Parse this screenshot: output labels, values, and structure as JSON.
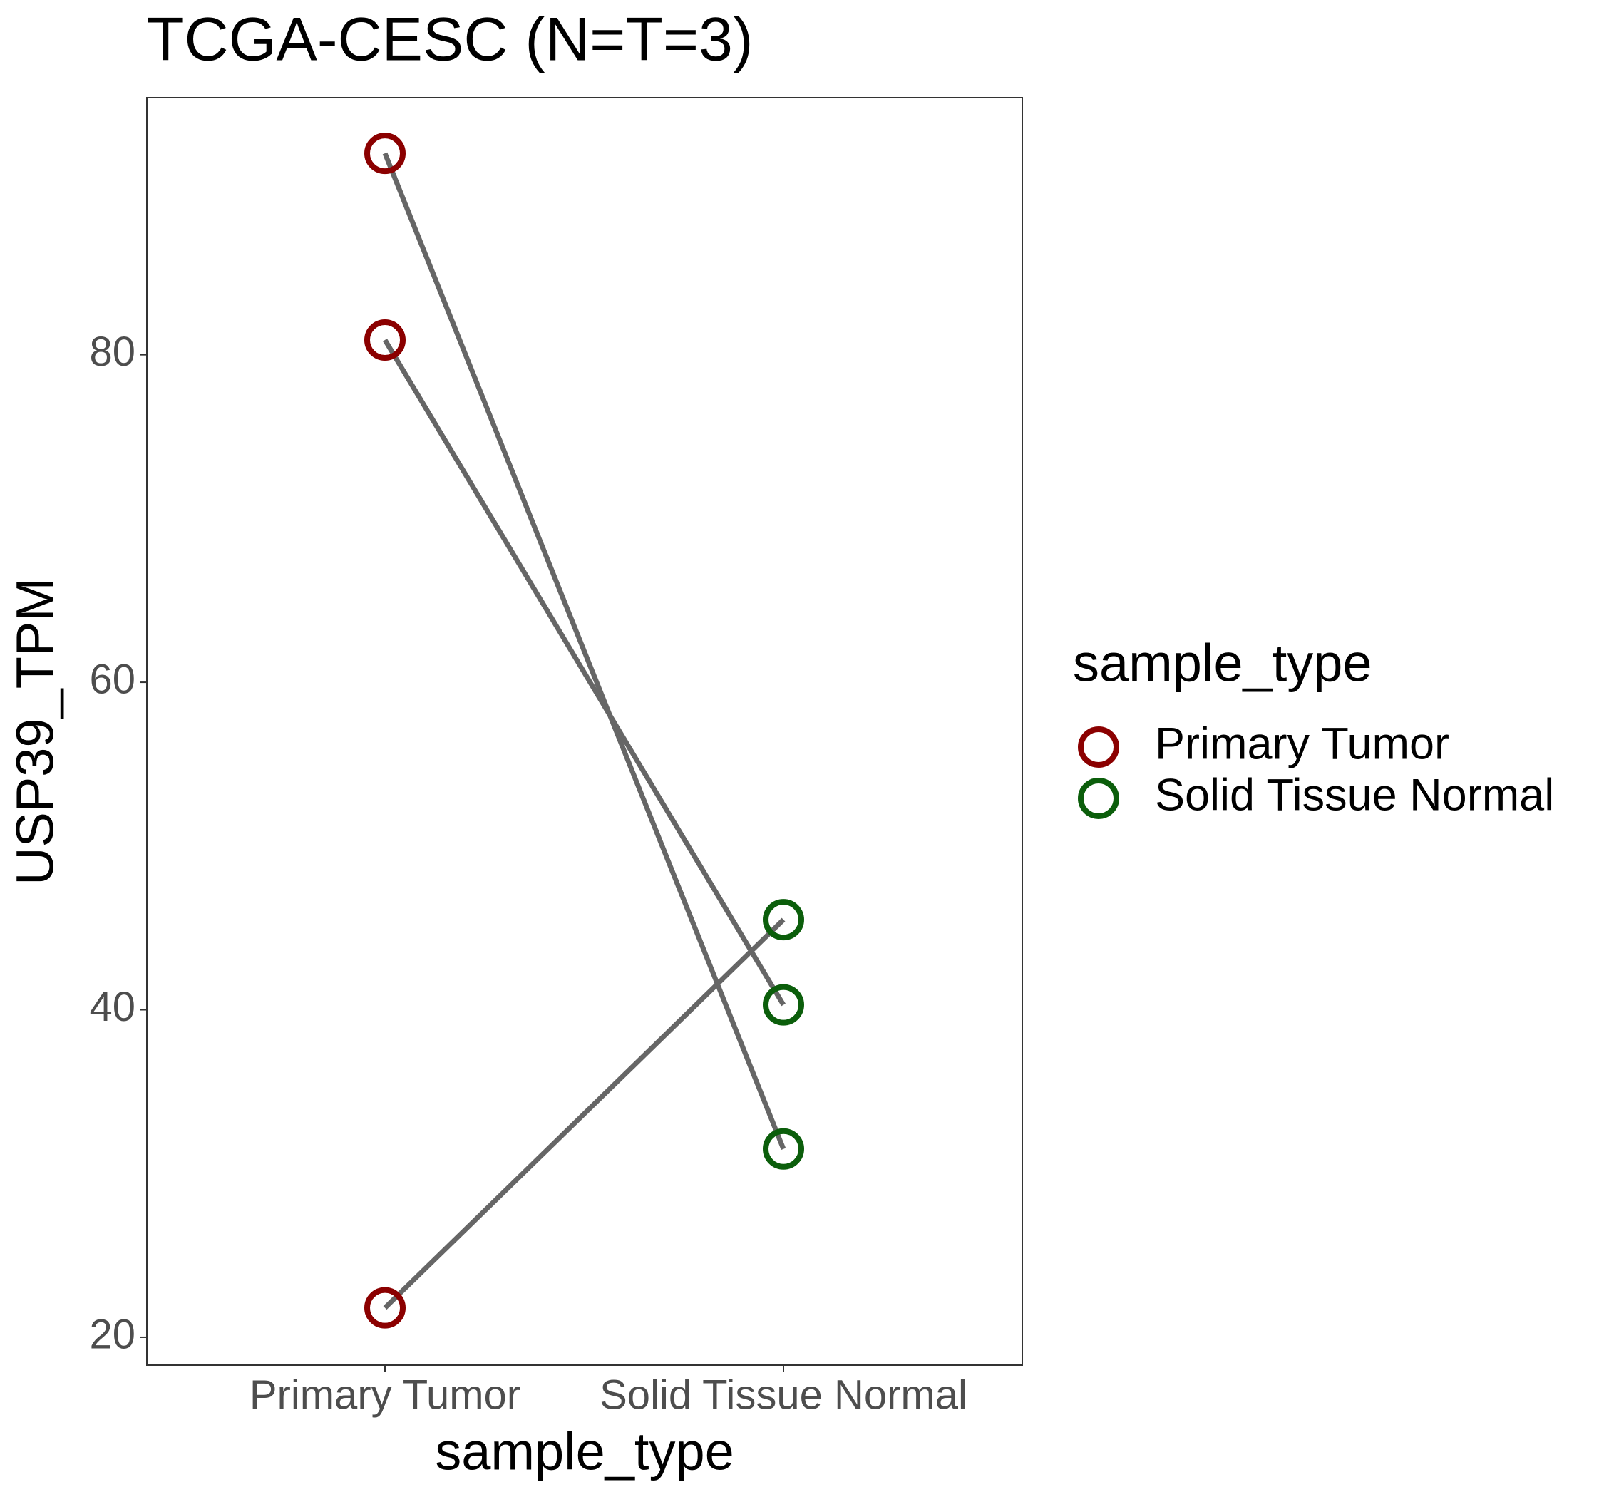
{
  "chart_data": {
    "type": "paired",
    "title": "TCGA-CESC  (N=T=3)",
    "x_label": "sample_type",
    "y_label": "USP39_TPM",
    "legend_title": "sample_type",
    "categories": [
      "Primary Tumor",
      "Solid Tissue Normal"
    ],
    "colors": [
      "#8b0000",
      "#0b5e0b"
    ],
    "pairs": [
      [
        92.3,
        31.5
      ],
      [
        80.9,
        40.3
      ],
      [
        21.8,
        45.5
      ]
    ],
    "line_color": "#666666",
    "ylim": [
      18.3,
      95.7
    ],
    "yticks": [
      20,
      40,
      60,
      80
    ]
  }
}
